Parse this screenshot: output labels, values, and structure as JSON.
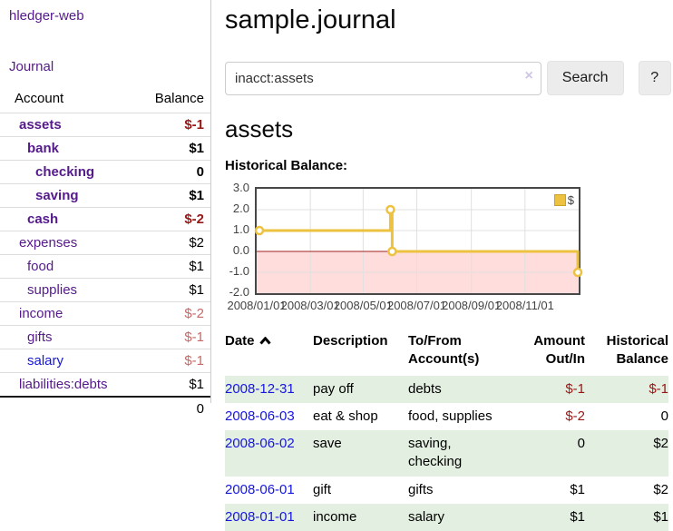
{
  "app": {
    "brand": "hledger-web",
    "nav_journal": "Journal"
  },
  "colors": {
    "link_purple": "#551a8b",
    "link_blue": "#1616dd",
    "negative_strong": "#971717",
    "negative_soft": "#c46a6a",
    "row_stripe_green": "#e3efe0",
    "chart_line_gold": "#EDC240",
    "negative_region_pink": "#ffdddd",
    "zero_line_red": "#a02020"
  },
  "sidebar": {
    "header": {
      "account": "Account",
      "balance": "Balance"
    },
    "accounts": [
      {
        "name": "assets",
        "balance": "$-1"
      },
      {
        "name": "bank",
        "balance": "$1"
      },
      {
        "name": "checking",
        "balance": "0"
      },
      {
        "name": "saving",
        "balance": "$1"
      },
      {
        "name": "cash",
        "balance": "$-2"
      },
      {
        "name": "expenses",
        "balance": "$2"
      },
      {
        "name": "food",
        "balance": "$1"
      },
      {
        "name": "supplies",
        "balance": "$1"
      },
      {
        "name": "income",
        "balance": "$-2"
      },
      {
        "name": "gifts",
        "balance": "$-1"
      },
      {
        "name": "salary",
        "balance": "$-1"
      },
      {
        "name": "liabilities:debts",
        "balance": "$1"
      }
    ],
    "total": "0"
  },
  "header": {
    "title": "sample.journal"
  },
  "search": {
    "value": "inacct:assets",
    "clear_icon": "×",
    "button_label": "Search",
    "help_label": "?"
  },
  "account_page": {
    "heading": "assets",
    "chart_label": "Historical Balance:"
  },
  "chart_data": {
    "type": "line",
    "step": true,
    "title": "Historical Balance",
    "legend_position": "top-right",
    "grid": true,
    "grid_color": "#e0e0e0",
    "border_color": "#474747",
    "negative_region_fill": "#ffdddd",
    "zero_line_color": "#a02020",
    "ylim": [
      -2,
      3
    ],
    "y_ticks": [
      "3.0",
      "2.0",
      "1.0",
      "0.0",
      "-1.0",
      "-2.0"
    ],
    "x_day_range": [
      0,
      366
    ],
    "x_ticks": [
      {
        "label": "2008/01/01",
        "day": 0
      },
      {
        "label": "2008/03/01",
        "day": 61
      },
      {
        "label": "2008/05/01",
        "day": 121
      },
      {
        "label": "2008/07/01",
        "day": 182
      },
      {
        "label": "2008/09/01",
        "day": 244
      },
      {
        "label": "2008/11/01",
        "day": 305
      }
    ],
    "series": [
      {
        "name": "$",
        "color": "#EDC240",
        "points": [
          {
            "date": "2008-01-01",
            "day": 0,
            "value": 1
          },
          {
            "date": "2008-06-01",
            "day": 152,
            "value": 2
          },
          {
            "date": "2008-06-03",
            "day": 154,
            "value": 0
          },
          {
            "date": "2008-12-31",
            "day": 365,
            "value": -1
          }
        ]
      }
    ]
  },
  "register": {
    "columns": [
      "Date",
      "Description",
      "To/From Account(s)",
      "Amount Out/In",
      "Historical Balance"
    ],
    "sort_icon": "chevron-up",
    "rows": [
      {
        "date": "2008-12-31",
        "description": "pay off",
        "accounts": "debts",
        "amount": "$-1",
        "balance": "$-1"
      },
      {
        "date": "2008-06-03",
        "description": "eat & shop",
        "accounts": "food, supplies",
        "amount": "$-2",
        "balance": "0"
      },
      {
        "date": "2008-06-02",
        "description": "save",
        "accounts": "saving, checking",
        "amount": "0",
        "balance": "$2"
      },
      {
        "date": "2008-06-01",
        "description": "gift",
        "accounts": "gifts",
        "amount": "$1",
        "balance": "$2"
      },
      {
        "date": "2008-01-01",
        "description": "income",
        "accounts": "salary",
        "amount": "$1",
        "balance": "$1"
      }
    ]
  }
}
